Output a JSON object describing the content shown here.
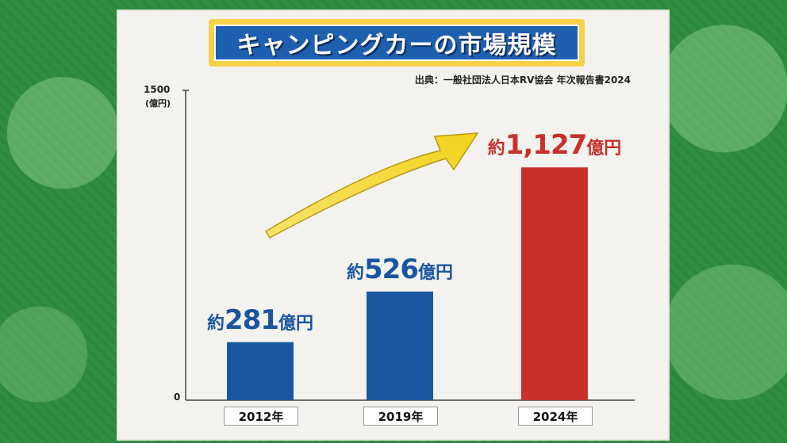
{
  "title": "キャンピングカーの市場規模",
  "source": "出典：一般社団法人日本RV協会 年次報告書2024",
  "colors": {
    "blue": "#1a56a0",
    "red": "#c8302a",
    "arrow": "#f2d21e",
    "title_bg": "#1f5fb0",
    "title_frame": "#f6d24a"
  },
  "chart_data": {
    "type": "bar",
    "categories": [
      "2012年",
      "2019年",
      "2024年"
    ],
    "values": [
      281,
      526,
      1127
    ],
    "ylim": [
      0,
      1500
    ],
    "ytick_labels": [
      "1500",
      "0"
    ],
    "ylabel": "(億円)",
    "data_labels": [
      {
        "prefix": "約",
        "number": "281",
        "suffix": "億円",
        "color": "#1a56a0"
      },
      {
        "prefix": "約",
        "number": "526",
        "suffix": "億円",
        "color": "#1a56a0"
      },
      {
        "prefix": "約",
        "number": "1,127",
        "suffix": "億円",
        "color": "#c8302a"
      }
    ],
    "bar_colors": [
      "#1a56a0",
      "#1a56a0",
      "#c8302a"
    ],
    "annotation": "upward-trend-arrow"
  }
}
